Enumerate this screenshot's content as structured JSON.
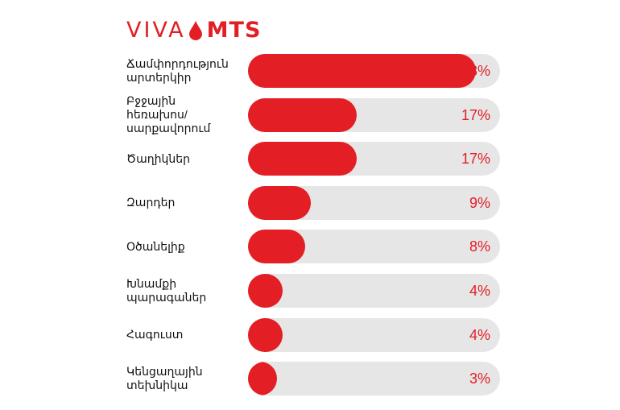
{
  "brand": {
    "part1": "VIVA",
    "part2": "MTS",
    "color": "#e31e24"
  },
  "chart_data": {
    "type": "bar",
    "orientation": "horizontal",
    "categories": [
      [
        "Ճամփորդություն",
        "արտերկիր"
      ],
      [
        "Բջջային հեռախոս/",
        "սարքավորում"
      ],
      [
        "Ծաղիկներ"
      ],
      [
        "Զարդեր"
      ],
      [
        "Օծանելիք"
      ],
      [
        "Խնամքի",
        "պարագաներ"
      ],
      [
        "Հագուստ"
      ],
      [
        "Կենցաղային",
        "տեխնիկա"
      ]
    ],
    "values": [
      38,
      17,
      17,
      9,
      8,
      4,
      4,
      3
    ],
    "value_labels": [
      "38%",
      "17%",
      "17%",
      "9%",
      "8%",
      "4%",
      "4%",
      "3%"
    ],
    "xlim": [
      0,
      100
    ],
    "bar_color": "#e31e24",
    "track_color": "#e6e6e6",
    "grid": false
  }
}
